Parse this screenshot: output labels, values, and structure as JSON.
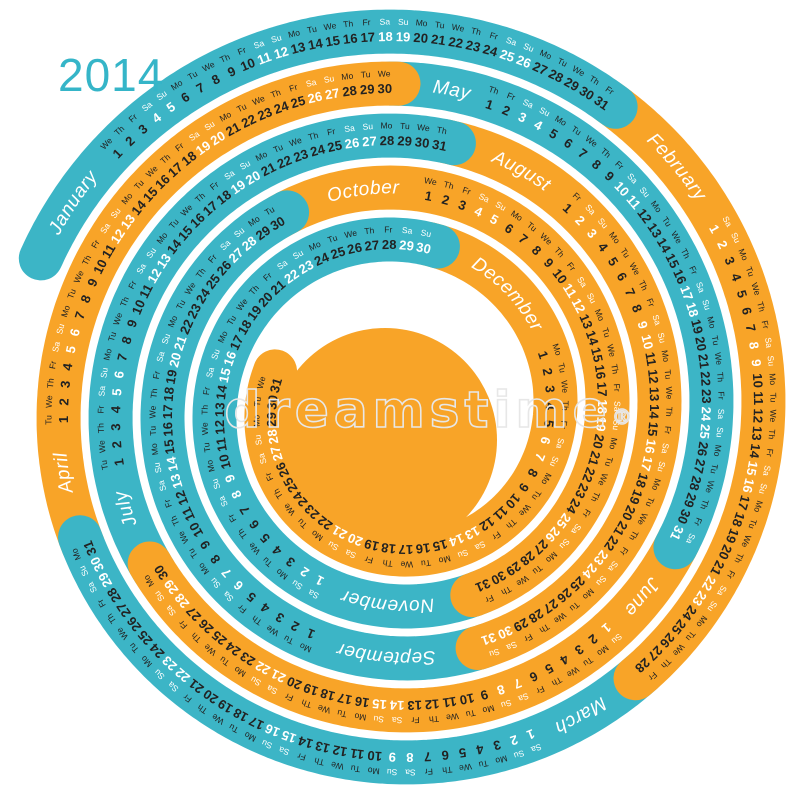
{
  "year": "2014",
  "weekdays": [
    "Mo",
    "Tu",
    "We",
    "Th",
    "Fr",
    "Sa",
    "Su"
  ],
  "weekend": [
    "Sa",
    "Su"
  ],
  "months": [
    {
      "name": "January",
      "days": 31,
      "start": "We",
      "color": "teal"
    },
    {
      "name": "February",
      "days": 28,
      "start": "Sa",
      "color": "orange"
    },
    {
      "name": "March",
      "days": 31,
      "start": "Sa",
      "color": "teal"
    },
    {
      "name": "April",
      "days": 30,
      "start": "Tu",
      "color": "orange"
    },
    {
      "name": "May",
      "days": 31,
      "start": "Th",
      "color": "teal"
    },
    {
      "name": "June",
      "days": 30,
      "start": "Su",
      "color": "orange"
    },
    {
      "name": "July",
      "days": 31,
      "start": "Tu",
      "color": "teal"
    },
    {
      "name": "August",
      "days": 31,
      "start": "Fr",
      "color": "orange"
    },
    {
      "name": "September",
      "days": 30,
      "start": "Mo",
      "color": "teal"
    },
    {
      "name": "October",
      "days": 31,
      "start": "We",
      "color": "orange"
    },
    {
      "name": "November",
      "days": 30,
      "start": "Sa",
      "color": "teal"
    },
    {
      "name": "December",
      "days": 31,
      "start": "Mo",
      "color": "orange"
    }
  ],
  "colors": {
    "teal": "#3cb5c6",
    "orange": "#f8a428",
    "day_text": "#222222",
    "weekend_text": "#ffffff",
    "month_label_text": "#ffffff",
    "year_text": "#35b5c8",
    "center_disc": "#f8a428",
    "background": "#ffffff"
  },
  "watermark": {
    "text": "dreamstime",
    "registered": "®"
  }
}
